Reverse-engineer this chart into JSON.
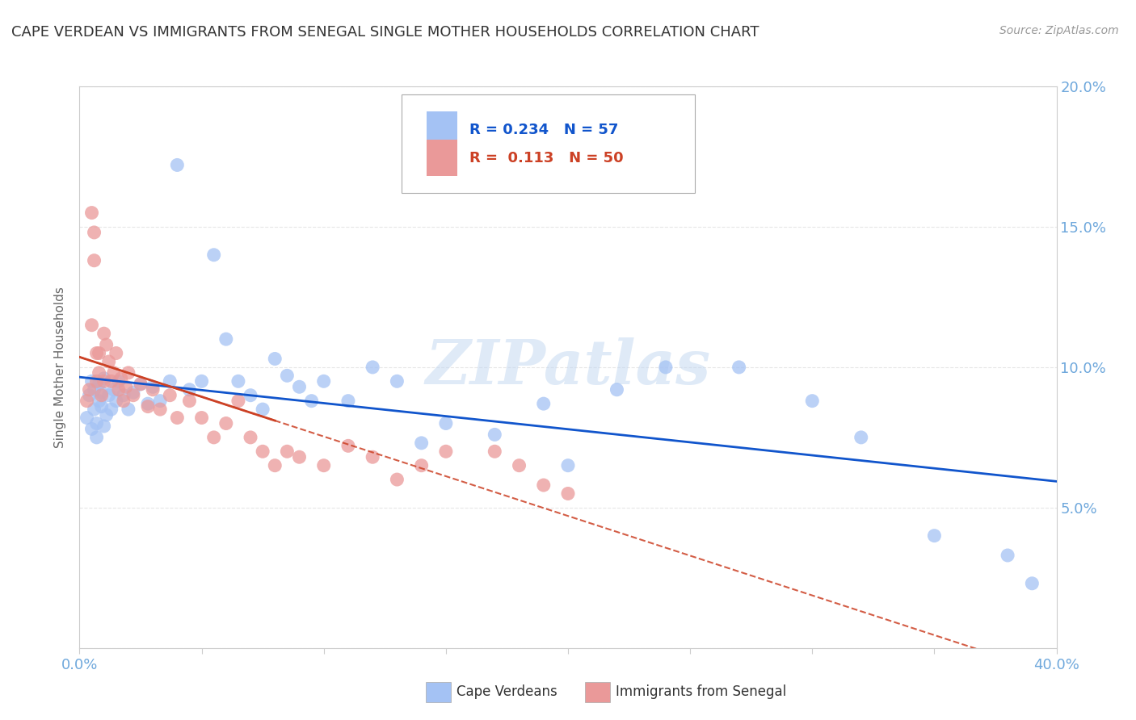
{
  "title": "CAPE VERDEAN VS IMMIGRANTS FROM SENEGAL SINGLE MOTHER HOUSEHOLDS CORRELATION CHART",
  "source": "Source: ZipAtlas.com",
  "ylabel": "Single Mother Households",
  "watermark": "ZIPatlas",
  "xlim": [
    0.0,
    0.4
  ],
  "ylim": [
    0.0,
    0.2
  ],
  "blue_R": 0.234,
  "blue_N": 57,
  "pink_R": 0.113,
  "pink_N": 50,
  "blue_color": "#a4c2f4",
  "pink_color": "#ea9999",
  "blue_line_color": "#1155cc",
  "pink_line_color": "#cc4125",
  "legend_blue_label": "Cape Verdeans",
  "legend_pink_label": "Immigrants from Senegal",
  "background_color": "#ffffff",
  "grid_color": "#e0e0e0",
  "axis_color": "#cccccc",
  "title_color": "#333333",
  "tick_color": "#6fa8dc",
  "blue_x": [
    0.003,
    0.004,
    0.005,
    0.005,
    0.006,
    0.006,
    0.007,
    0.007,
    0.008,
    0.008,
    0.009,
    0.009,
    0.01,
    0.01,
    0.011,
    0.012,
    0.013,
    0.014,
    0.015,
    0.016,
    0.018,
    0.02,
    0.022,
    0.025,
    0.028,
    0.03,
    0.033,
    0.037,
    0.04,
    0.045,
    0.05,
    0.055,
    0.06,
    0.065,
    0.07,
    0.075,
    0.08,
    0.085,
    0.09,
    0.095,
    0.1,
    0.11,
    0.12,
    0.13,
    0.14,
    0.15,
    0.17,
    0.19,
    0.2,
    0.22,
    0.24,
    0.27,
    0.3,
    0.32,
    0.35,
    0.38,
    0.39
  ],
  "blue_y": [
    0.082,
    0.09,
    0.078,
    0.095,
    0.085,
    0.092,
    0.08,
    0.075,
    0.088,
    0.094,
    0.086,
    0.091,
    0.079,
    0.096,
    0.083,
    0.09,
    0.085,
    0.092,
    0.088,
    0.095,
    0.09,
    0.085,
    0.091,
    0.094,
    0.087,
    0.093,
    0.088,
    0.095,
    0.172,
    0.092,
    0.095,
    0.14,
    0.11,
    0.095,
    0.09,
    0.085,
    0.103,
    0.097,
    0.093,
    0.088,
    0.095,
    0.088,
    0.1,
    0.095,
    0.073,
    0.08,
    0.076,
    0.087,
    0.065,
    0.092,
    0.1,
    0.1,
    0.088,
    0.075,
    0.04,
    0.033,
    0.023
  ],
  "pink_x": [
    0.003,
    0.004,
    0.005,
    0.005,
    0.006,
    0.006,
    0.007,
    0.007,
    0.008,
    0.008,
    0.009,
    0.01,
    0.01,
    0.011,
    0.012,
    0.013,
    0.014,
    0.015,
    0.016,
    0.017,
    0.018,
    0.019,
    0.02,
    0.022,
    0.025,
    0.028,
    0.03,
    0.033,
    0.037,
    0.04,
    0.045,
    0.05,
    0.055,
    0.06,
    0.065,
    0.07,
    0.075,
    0.08,
    0.085,
    0.09,
    0.1,
    0.11,
    0.12,
    0.13,
    0.14,
    0.15,
    0.17,
    0.18,
    0.19,
    0.2
  ],
  "pink_y": [
    0.088,
    0.092,
    0.155,
    0.115,
    0.138,
    0.148,
    0.105,
    0.095,
    0.098,
    0.105,
    0.09,
    0.112,
    0.095,
    0.108,
    0.102,
    0.095,
    0.098,
    0.105,
    0.092,
    0.096,
    0.088,
    0.093,
    0.098,
    0.09,
    0.094,
    0.086,
    0.092,
    0.085,
    0.09,
    0.082,
    0.088,
    0.082,
    0.075,
    0.08,
    0.088,
    0.075,
    0.07,
    0.065,
    0.07,
    0.068,
    0.065,
    0.072,
    0.068,
    0.06,
    0.065,
    0.07,
    0.07,
    0.065,
    0.058,
    0.055
  ]
}
